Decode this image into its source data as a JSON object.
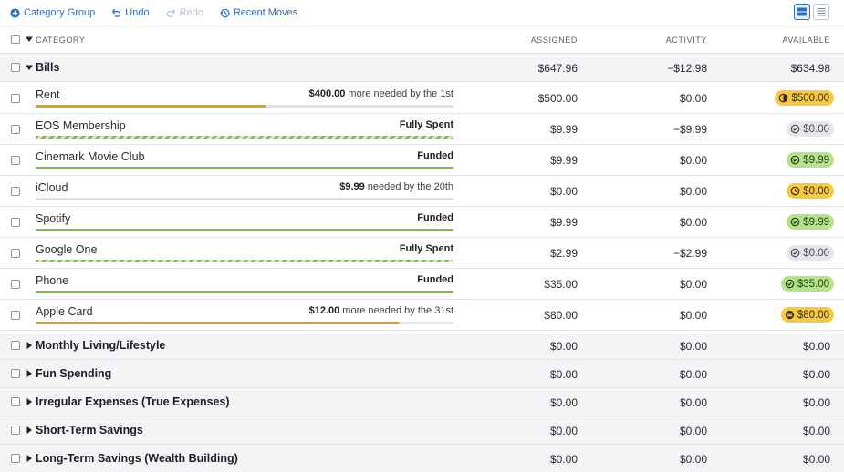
{
  "toolbar": {
    "category_group": "Category Group",
    "undo": "Undo",
    "redo": "Redo",
    "recent_moves": "Recent Moves"
  },
  "colors": {
    "accent": "#2b6cc9",
    "funded_green": "#7fbf3f",
    "underfunded_yellow": "#f8c940",
    "progress_orange": "#e0a21b"
  },
  "header": {
    "category": "CATEGORY",
    "assigned": "ASSIGNED",
    "activity": "ACTIVITY",
    "available": "AVAILABLE"
  },
  "bills": {
    "name": "Bills",
    "assigned": "$647.96",
    "activity": "−$12.98",
    "available": "$634.98",
    "expanded": true,
    "categories": [
      {
        "name": "Rent",
        "status_amount": "$400.00",
        "status_text": " more needed by the 1st",
        "progress": 0.55,
        "bar_style": "partial",
        "assigned": "$500.00",
        "activity": "$0.00",
        "available": "$500.00",
        "pill": "yellow",
        "pill_icon": "half-circle-icon"
      },
      {
        "name": "EOS Membership",
        "status_amount": "Fully Spent",
        "status_text": "",
        "progress": 1,
        "bar_style": "striped",
        "assigned": "$9.99",
        "activity": "−$9.99",
        "available": "$0.00",
        "pill": "gray",
        "pill_icon": "check-circle-icon"
      },
      {
        "name": "Cinemark Movie Club",
        "status_amount": "Funded",
        "status_text": "",
        "progress": 1,
        "bar_style": "funded",
        "assigned": "$9.99",
        "activity": "$0.00",
        "available": "$9.99",
        "pill": "green",
        "pill_icon": "check-circle-icon"
      },
      {
        "name": "iCloud",
        "status_amount": "$9.99",
        "status_text": " needed by the 20th",
        "progress": 0,
        "bar_style": "partial",
        "assigned": "$0.00",
        "activity": "$0.00",
        "available": "$0.00",
        "pill": "yellow",
        "pill_icon": "clock-icon"
      },
      {
        "name": "Spotify",
        "status_amount": "Funded",
        "status_text": "",
        "progress": 1,
        "bar_style": "funded",
        "assigned": "$9.99",
        "activity": "$0.00",
        "available": "$9.99",
        "pill": "green",
        "pill_icon": "check-circle-icon"
      },
      {
        "name": "Google One",
        "status_amount": "Fully Spent",
        "status_text": "",
        "progress": 1,
        "bar_style": "striped",
        "assigned": "$2.99",
        "activity": "−$2.99",
        "available": "$0.00",
        "pill": "gray",
        "pill_icon": "check-circle-icon"
      },
      {
        "name": "Phone",
        "status_amount": "Funded",
        "status_text": "",
        "progress": 1,
        "bar_style": "funded",
        "assigned": "$35.00",
        "activity": "$0.00",
        "available": "$35.00",
        "pill": "green",
        "pill_icon": "check-circle-icon"
      },
      {
        "name": "Apple Card",
        "status_amount": "$12.00",
        "status_text": " more needed by the 31st",
        "progress": 0.87,
        "bar_style": "partial",
        "assigned": "$80.00",
        "activity": "$0.00",
        "available": "$80.00",
        "pill": "yellow",
        "pill_icon": "credit-card-icon"
      }
    ]
  },
  "collapsed_groups": [
    {
      "name": "Monthly Living/Lifestyle",
      "assigned": "$0.00",
      "activity": "$0.00",
      "available": "$0.00"
    },
    {
      "name": "Fun Spending",
      "assigned": "$0.00",
      "activity": "$0.00",
      "available": "$0.00"
    },
    {
      "name": "Irregular Expenses (True Expenses)",
      "assigned": "$0.00",
      "activity": "$0.00",
      "available": "$0.00"
    },
    {
      "name": "Short-Term Savings",
      "assigned": "$0.00",
      "activity": "$0.00",
      "available": "$0.00"
    },
    {
      "name": "Long-Term Savings (Wealth Building)",
      "assigned": "$0.00",
      "activity": "$0.00",
      "available": "$0.00"
    }
  ]
}
